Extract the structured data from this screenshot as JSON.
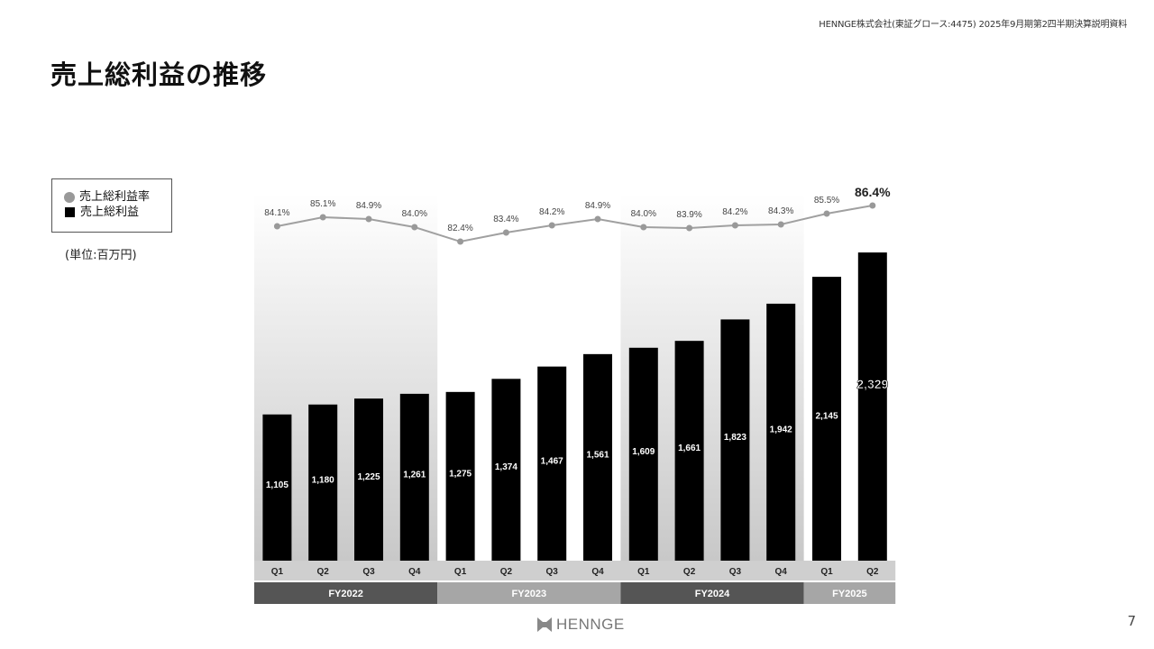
{
  "header": {
    "note": "HENNGE株式会社(東証グロース:4475) 2025年9月期第2四半期決算説明資料",
    "title": "売上総利益の推移",
    "page_number": "7"
  },
  "legend": {
    "rate_label": "売上総利益率",
    "profit_label": "売上総利益",
    "unit": "(単位:百万円)"
  },
  "logo": {
    "text": "HENNGE"
  },
  "colors": {
    "bar": "#000000",
    "line": "#a0a0a0",
    "fy_band_dark": "#555555",
    "fy_band_light": "#a6a6a6"
  },
  "chart_data": {
    "type": "bar",
    "categories": [
      "Q1",
      "Q2",
      "Q3",
      "Q4",
      "Q1",
      "Q2",
      "Q3",
      "Q4",
      "Q1",
      "Q2",
      "Q3",
      "Q4",
      "Q1",
      "Q2"
    ],
    "series": [
      {
        "name": "売上総利益",
        "type": "bar",
        "values": [
          1105,
          1180,
          1225,
          1261,
          1275,
          1374,
          1467,
          1561,
          1609,
          1661,
          1823,
          1942,
          2145,
          2329
        ],
        "labels": [
          "1,105",
          "1,180",
          "1,225",
          "1,261",
          "1,275",
          "1,374",
          "1,467",
          "1,561",
          "1,609",
          "1,661",
          "1,823",
          "1,942",
          "2,145",
          "2,329"
        ]
      },
      {
        "name": "売上総利益率",
        "type": "line",
        "values": [
          84.1,
          85.1,
          84.9,
          84.0,
          82.4,
          83.4,
          84.2,
          84.9,
          84.0,
          83.9,
          84.2,
          84.3,
          85.5,
          86.4
        ],
        "labels": [
          "84.1%",
          "85.1%",
          "84.9%",
          "84.0%",
          "82.4%",
          "83.4%",
          "84.2%",
          "84.9%",
          "84.0%",
          "83.9%",
          "84.2%",
          "84.3%",
          "85.5%",
          "86.4%"
        ]
      }
    ],
    "fiscal_years": [
      {
        "label": "FY2022",
        "count": 4,
        "shade": "dark"
      },
      {
        "label": "FY2023",
        "count": 4,
        "shade": "light"
      },
      {
        "label": "FY2024",
        "count": 4,
        "shade": "dark"
      },
      {
        "label": "FY2025",
        "count": 2,
        "shade": "light"
      }
    ],
    "highlight_last": true,
    "grid": false
  }
}
